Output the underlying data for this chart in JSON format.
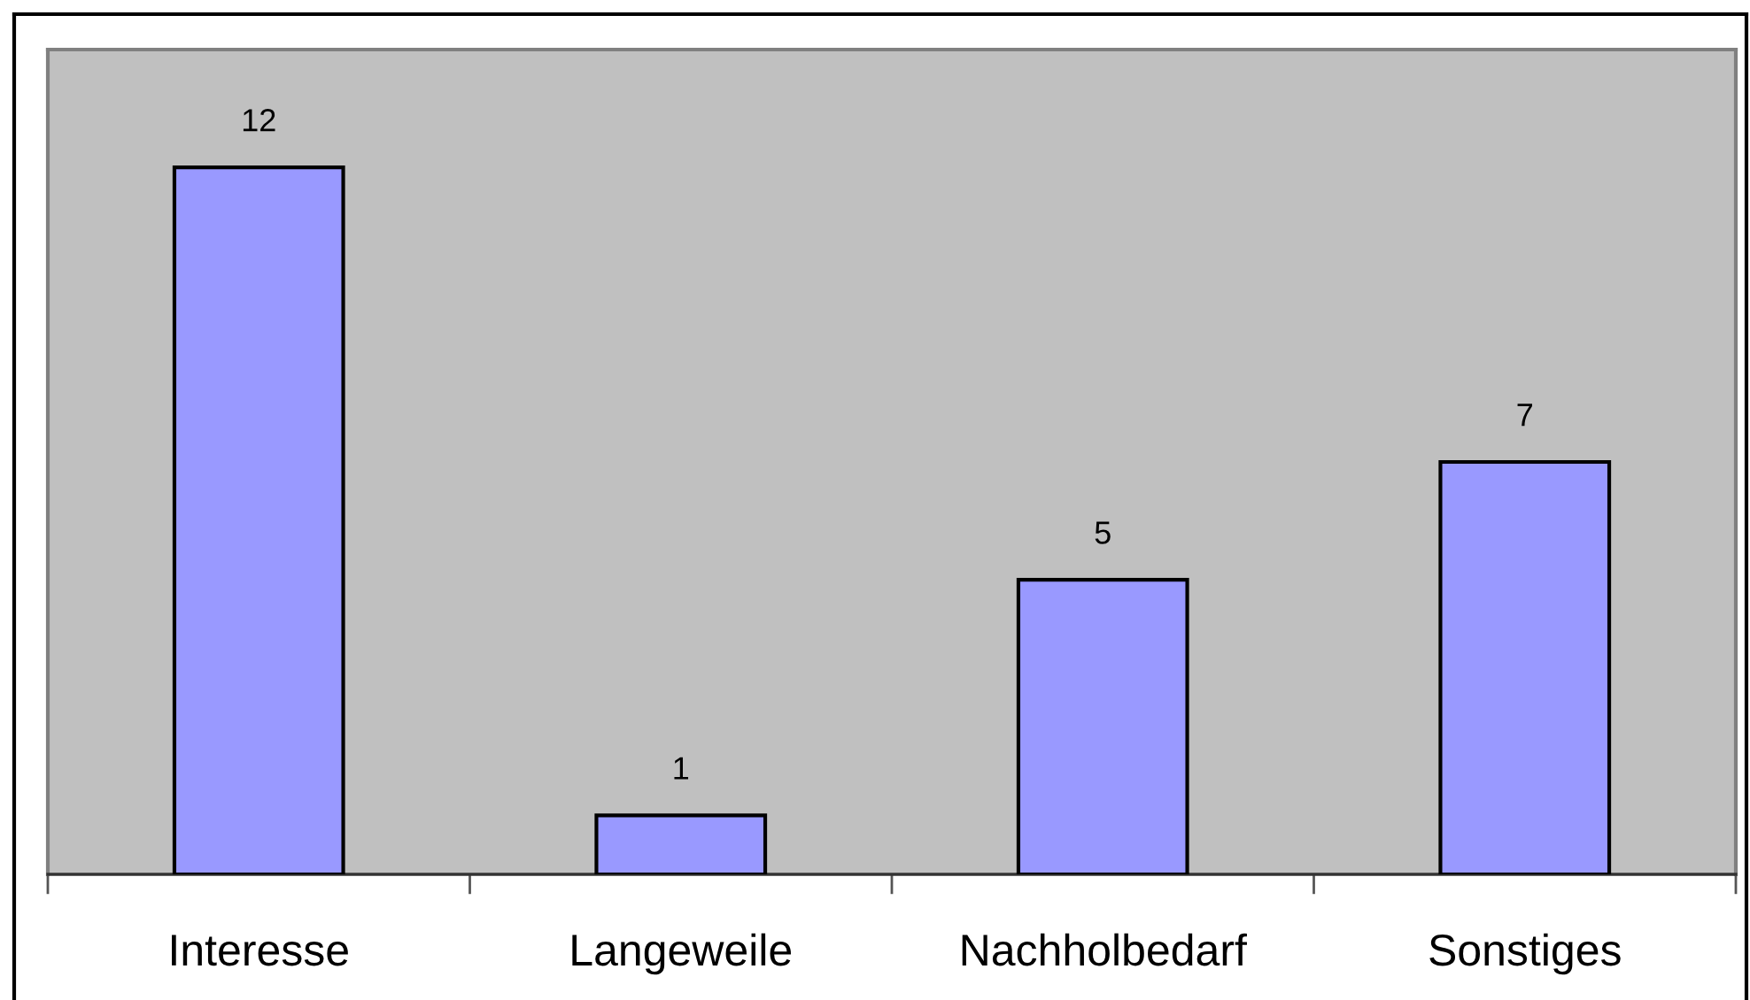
{
  "chart_data": {
    "type": "bar",
    "categories": [
      "Interesse",
      "Langeweile",
      "Nachholbedarf",
      "Sonstiges"
    ],
    "values": [
      12,
      1,
      5,
      7
    ],
    "color": "#9999ff",
    "ylim": [
      0,
      14
    ],
    "tick_labels": "x",
    "data_labels": true,
    "grid": false,
    "legend": false
  }
}
